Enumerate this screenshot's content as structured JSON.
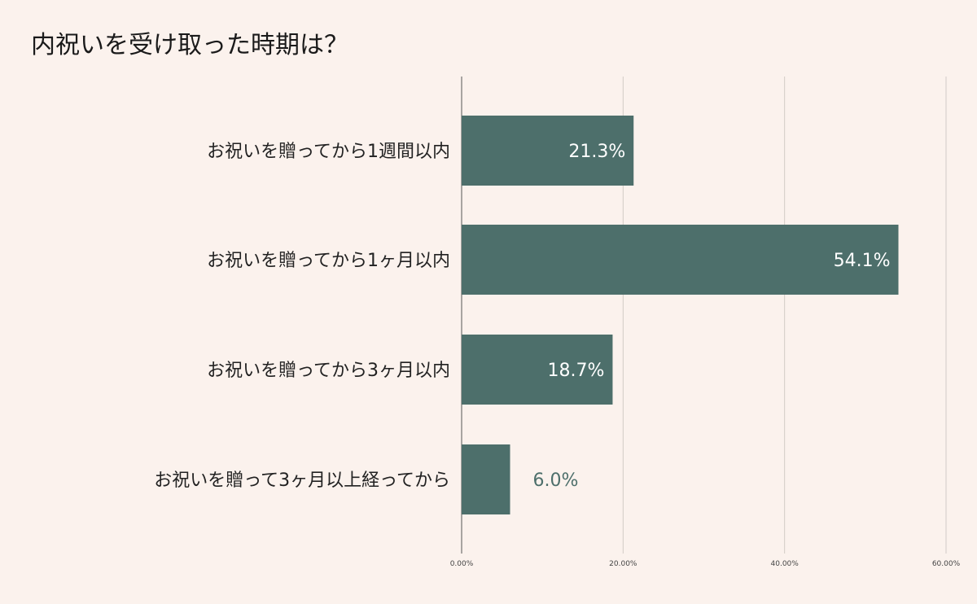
{
  "chart_data": {
    "type": "bar",
    "orientation": "horizontal",
    "title": "内祝いを受け取った時期は？",
    "categories": [
      "お祝いを贈ってから1週間以内",
      "お祝いを贈ってから1ヶ月以内",
      "お祝いを贈ってから3ヶ月以内",
      "お祝いを贈って3ヶ月以上経ってから"
    ],
    "values": [
      21.3,
      54.1,
      18.7,
      6.0
    ],
    "data_labels": [
      "21.3%",
      "54.1%",
      "18.7%",
      "6.0%"
    ],
    "x_ticks": [
      "0.00%",
      "20.00%",
      "40.00%",
      "60.00%"
    ],
    "xlim": [
      0,
      60
    ],
    "grid": true,
    "legend": "none",
    "colors": {
      "bar": "#4d6f6b",
      "label_inside": "#ffffff",
      "label_outside": "#4d6f6b",
      "background": "#fbf2ed"
    }
  }
}
